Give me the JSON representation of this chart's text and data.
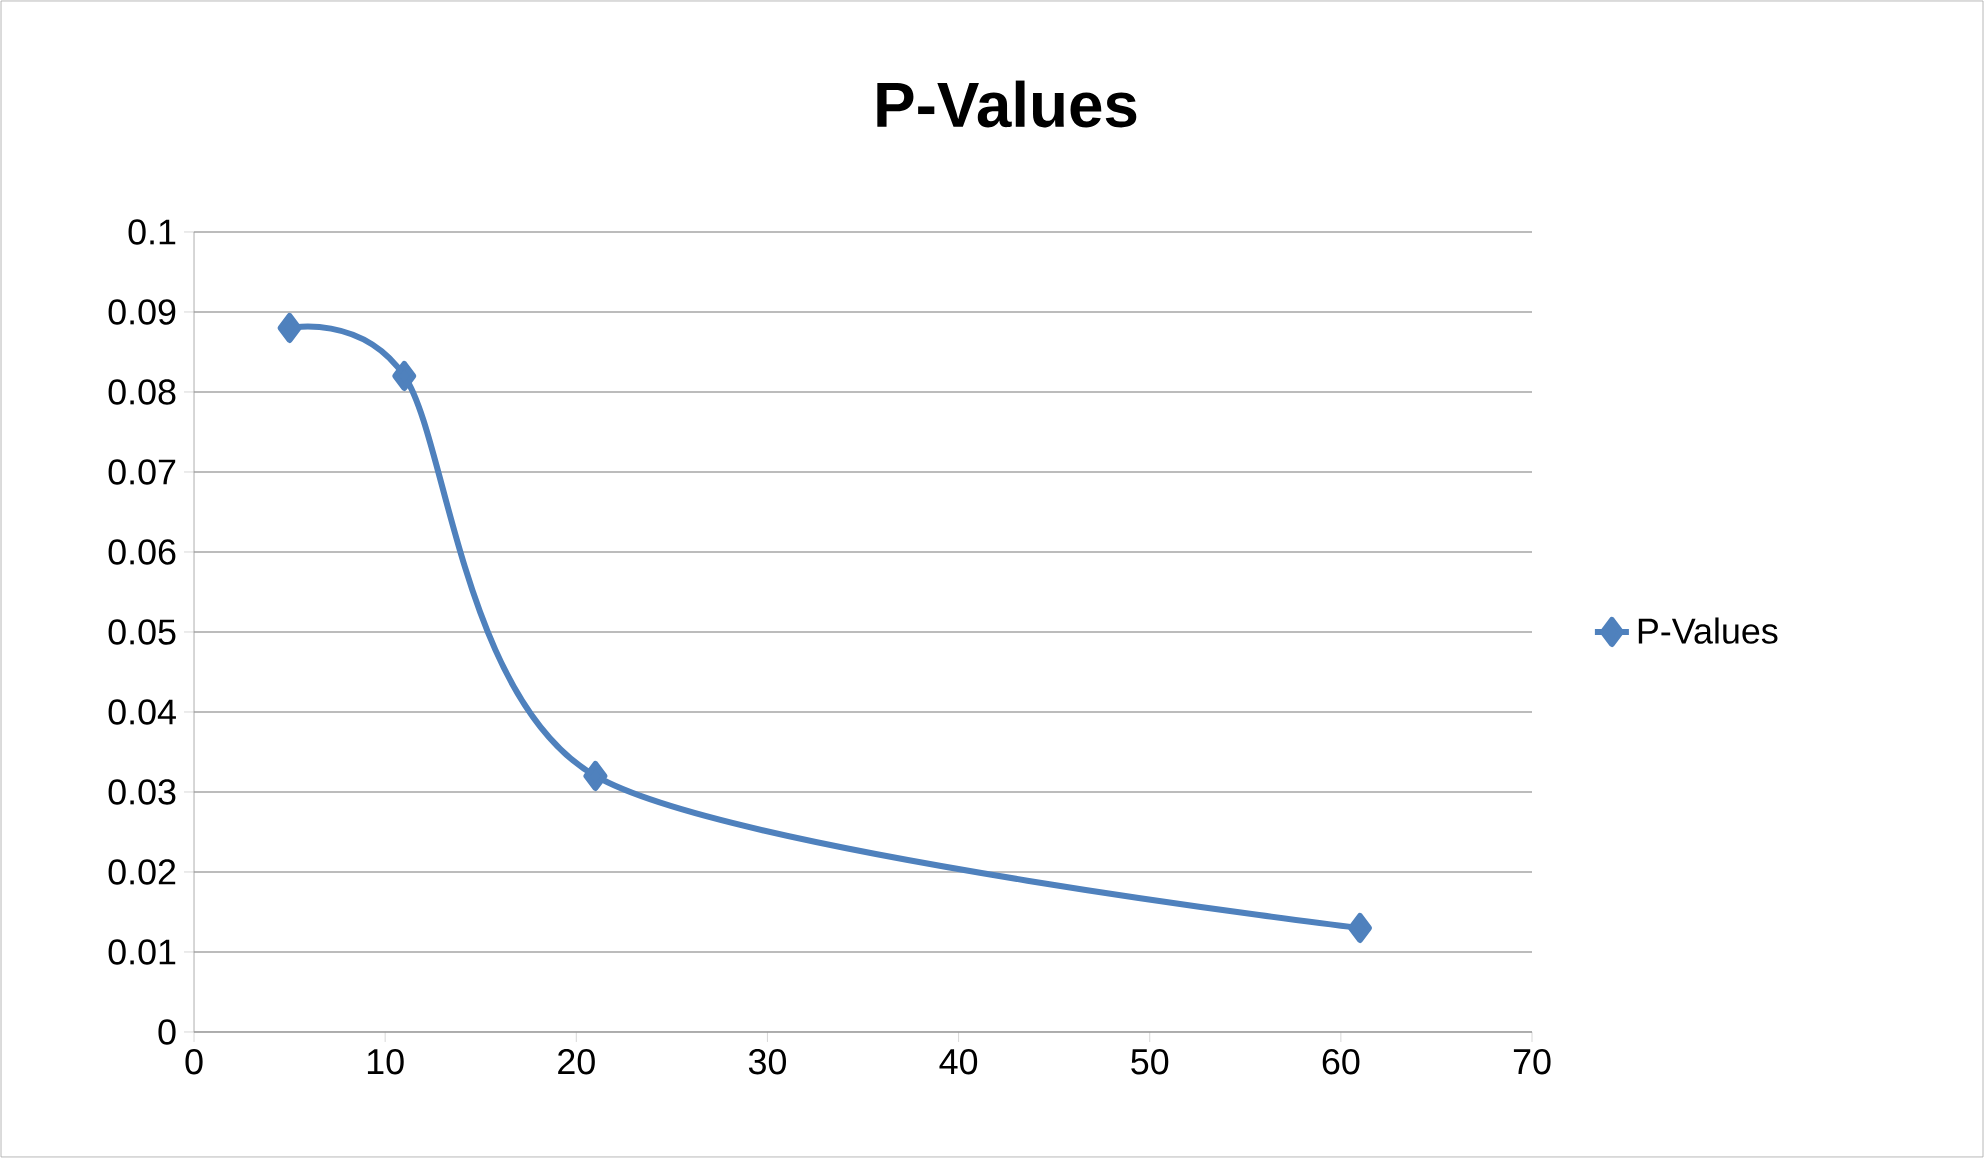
{
  "chart_data": {
    "type": "line",
    "title": "P-Values",
    "x": [
      5,
      11,
      21,
      61
    ],
    "series": [
      {
        "name": "P-Values",
        "color": "#4f81bd",
        "values": [
          0.088,
          0.082,
          0.032,
          0.013
        ]
      }
    ],
    "xlim": [
      0,
      70
    ],
    "ylim": [
      0,
      0.1
    ],
    "xticks": [
      0,
      10,
      20,
      30,
      40,
      50,
      60,
      70
    ],
    "yticks": [
      0,
      0.01,
      0.02,
      0.03,
      0.04,
      0.05,
      0.06,
      0.07,
      0.08,
      0.09,
      0.1
    ],
    "grid": "y",
    "legend": "right",
    "marker": "diamond",
    "line_style": "solid"
  }
}
